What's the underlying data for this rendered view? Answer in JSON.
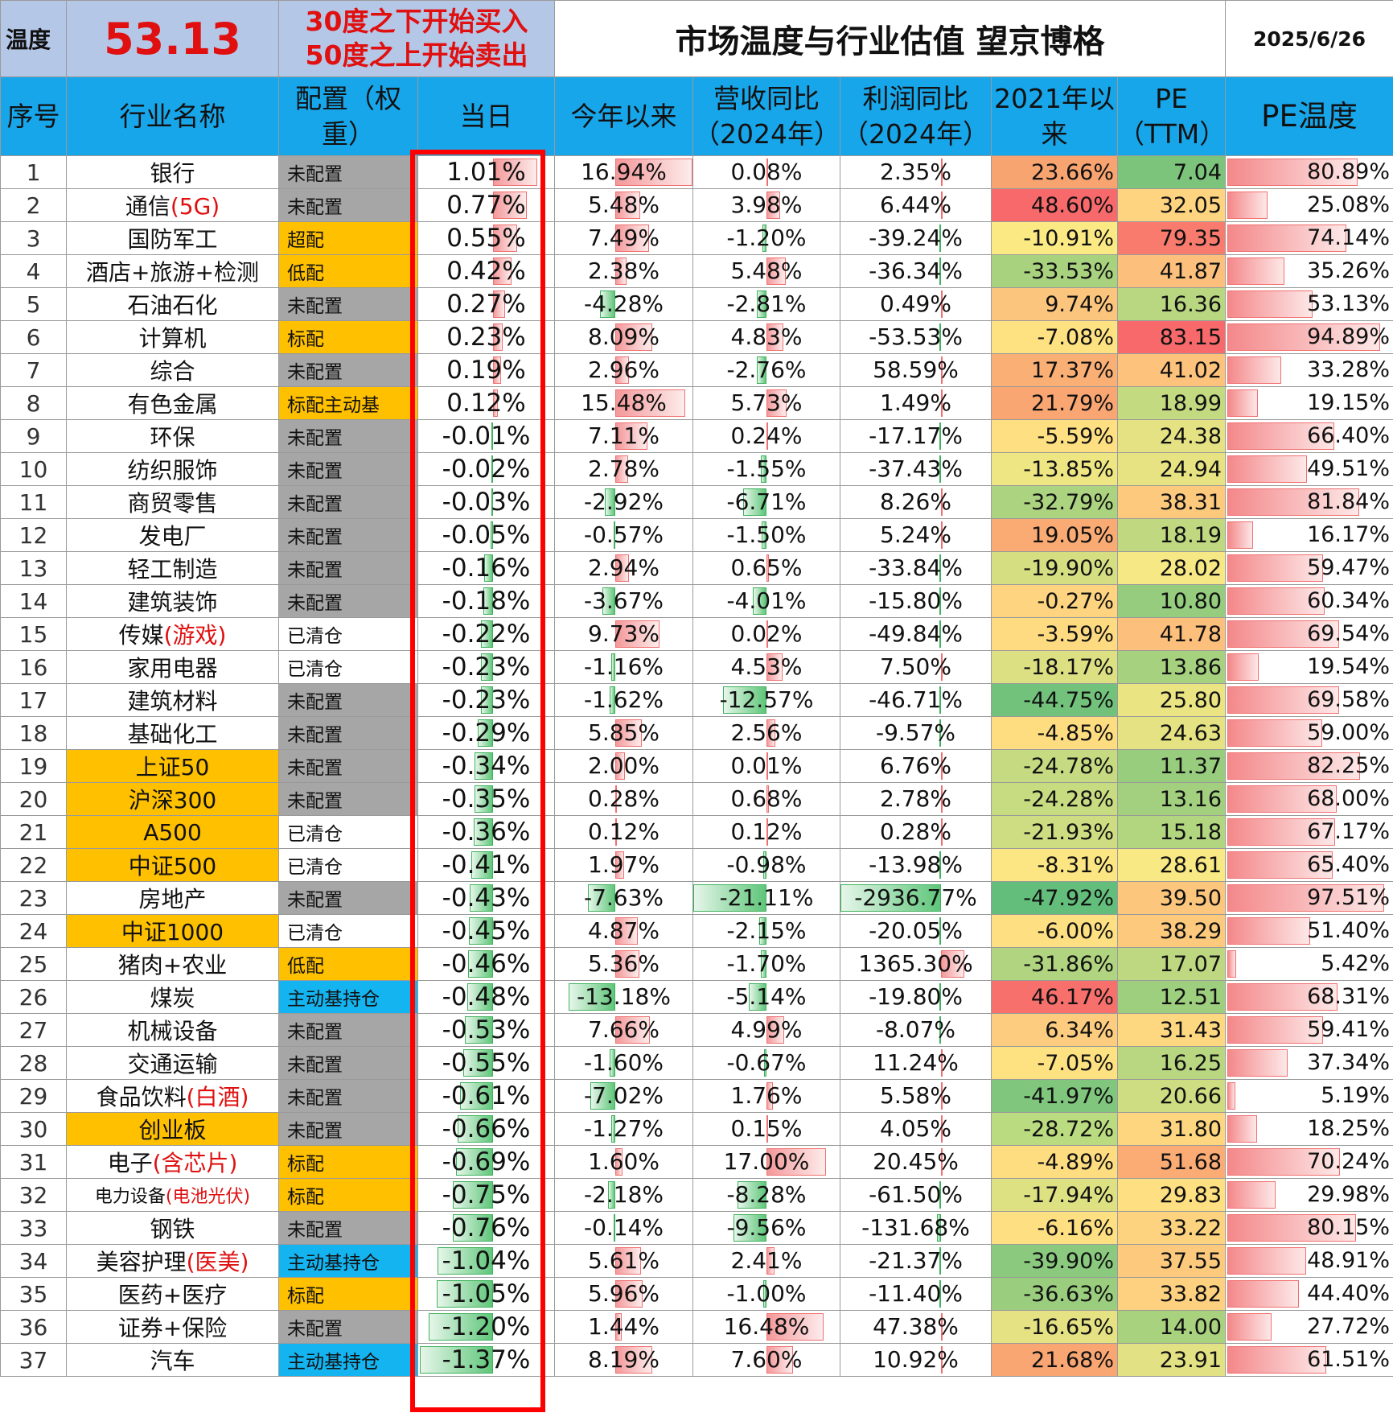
{
  "header": {
    "temp_label": "温度",
    "temp_value": "53.13",
    "rule_buy": "30度之下开始买入",
    "rule_sell": "50度之上开始卖出",
    "title": "市场温度与行业估值 望京博格",
    "date": "2025/6/26"
  },
  "columns": {
    "idx": "序号",
    "name": "行业名称",
    "alloc": "配置（权重）",
    "day": "当日",
    "ytd": "今年以来",
    "rev": "营收同比（2024年）",
    "profit": "利润同比（2024年）",
    "since2021": "2021年以来",
    "pe": "PE（TTM）",
    "pe_temp": "PE温度"
  },
  "colors": {
    "header_blue": "#18a6ea",
    "gold": "#ffc000",
    "gray": "#a6a6a6",
    "blue_cell": "#14b4f0",
    "red_text": "#e01010"
  },
  "rows": [
    {
      "idx": "1",
      "name": "银行",
      "name_red": "",
      "name_gold": false,
      "alloc": "未配置",
      "alloc_style": "gray",
      "day": "1.01%",
      "day_v": 1.01,
      "ytd": "16.94%",
      "ytd_v": 16.94,
      "rev": "0.08%",
      "rev_v": 0.08,
      "profit": "2.35%",
      "profit_v": 2.35,
      "since2021": "23.66%",
      "s21_color": "#f8a471",
      "pe": "7.04",
      "pe_color": "#7cc37c",
      "pe_temp": "80.89%",
      "pe_temp_v": 80.89
    },
    {
      "idx": "2",
      "name": "通信",
      "name_red": "(5G)",
      "name_gold": false,
      "alloc": "未配置",
      "alloc_style": "gray",
      "day": "0.77%",
      "day_v": 0.77,
      "ytd": "5.48%",
      "ytd_v": 5.48,
      "rev": "3.98%",
      "rev_v": 3.98,
      "profit": "6.44%",
      "profit_v": 6.44,
      "since2021": "48.60%",
      "s21_color": "#f8696b",
      "pe": "32.05",
      "pe_color": "#fed480",
      "pe_temp": "25.08%",
      "pe_temp_v": 25.08
    },
    {
      "idx": "3",
      "name": "国防军工",
      "name_red": "",
      "name_gold": false,
      "alloc": "超配",
      "alloc_style": "gold",
      "day": "0.55%",
      "day_v": 0.55,
      "ytd": "7.49%",
      "ytd_v": 7.49,
      "rev": "-1.20%",
      "rev_v": -1.2,
      "profit": "-39.24%",
      "profit_v": -39.24,
      "since2021": "-10.91%",
      "s21_color": "#fbe983",
      "pe": "79.35",
      "pe_color": "#f97b6e",
      "pe_temp": "74.14%",
      "pe_temp_v": 74.14
    },
    {
      "idx": "4",
      "name": "酒店+旅游+检测",
      "name_red": "",
      "name_gold": false,
      "alloc": "低配",
      "alloc_style": "gold",
      "day": "0.42%",
      "day_v": 0.42,
      "ytd": "2.38%",
      "ytd_v": 2.38,
      "rev": "5.48%",
      "rev_v": 5.48,
      "profit": "-36.34%",
      "profit_v": -36.34,
      "since2021": "-33.53%",
      "s21_color": "#a9d27f",
      "pe": "41.87",
      "pe_color": "#fdc07c",
      "pe_temp": "35.26%",
      "pe_temp_v": 35.26
    },
    {
      "idx": "5",
      "name": "石油石化",
      "name_red": "",
      "name_gold": false,
      "alloc": "未配置",
      "alloc_style": "gray",
      "day": "0.27%",
      "day_v": 0.27,
      "ytd": "-4.28%",
      "ytd_v": -4.28,
      "rev": "-2.81%",
      "rev_v": -2.81,
      "profit": "0.49%",
      "profit_v": 0.49,
      "since2021": "9.74%",
      "s21_color": "#fcc57d",
      "pe": "16.36",
      "pe_color": "#b9d780",
      "pe_temp": "53.13%",
      "pe_temp_v": 53.13
    },
    {
      "idx": "6",
      "name": "计算机",
      "name_red": "",
      "name_gold": false,
      "alloc": "标配",
      "alloc_style": "gold",
      "day": "0.23%",
      "day_v": 0.23,
      "ytd": "8.09%",
      "ytd_v": 8.09,
      "rev": "4.83%",
      "rev_v": 4.83,
      "profit": "-53.53%",
      "profit_v": -53.53,
      "since2021": "-7.08%",
      "s21_color": "#fee282",
      "pe": "83.15",
      "pe_color": "#f8696b",
      "pe_temp": "94.89%",
      "pe_temp_v": 94.89
    },
    {
      "idx": "7",
      "name": "综合",
      "name_red": "",
      "name_gold": false,
      "alloc": "未配置",
      "alloc_style": "gray",
      "day": "0.19%",
      "day_v": 0.19,
      "ytd": "2.96%",
      "ytd_v": 2.96,
      "rev": "-2.76%",
      "rev_v": -2.76,
      "profit": "58.59%",
      "profit_v": 58.59,
      "since2021": "17.37%",
      "s21_color": "#faaf75",
      "pe": "41.02",
      "pe_color": "#fdc37c",
      "pe_temp": "33.28%",
      "pe_temp_v": 33.28
    },
    {
      "idx": "8",
      "name": "有色金属",
      "name_red": "",
      "name_gold": false,
      "alloc": "标配主动基",
      "alloc_style": "gold",
      "day": "0.12%",
      "day_v": 0.12,
      "ytd": "15.48%",
      "ytd_v": 15.48,
      "rev": "5.73%",
      "rev_v": 5.73,
      "profit": "1.49%",
      "profit_v": 1.49,
      "since2021": "21.79%",
      "s21_color": "#f9a672",
      "pe": "18.99",
      "pe_color": "#c4da81",
      "pe_temp": "19.15%",
      "pe_temp_v": 19.15
    },
    {
      "idx": "9",
      "name": "环保",
      "name_red": "",
      "name_gold": false,
      "alloc": "未配置",
      "alloc_style": "gray",
      "day": "-0.01%",
      "day_v": -0.01,
      "ytd": "7.11%",
      "ytd_v": 7.11,
      "rev": "0.24%",
      "rev_v": 0.24,
      "profit": "-17.17%",
      "profit_v": -17.17,
      "since2021": "-5.59%",
      "s21_color": "#fedf81",
      "pe": "24.38",
      "pe_color": "#e4e283",
      "pe_temp": "66.40%",
      "pe_temp_v": 66.4
    },
    {
      "idx": "10",
      "name": "纺织服饰",
      "name_red": "",
      "name_gold": false,
      "alloc": "未配置",
      "alloc_style": "gray",
      "day": "-0.02%",
      "day_v": -0.02,
      "ytd": "2.78%",
      "ytd_v": 2.78,
      "rev": "-1.55%",
      "rev_v": -1.55,
      "profit": "-37.43%",
      "profit_v": -37.43,
      "since2021": "-13.85%",
      "s21_color": "#eee683",
      "pe": "24.94",
      "pe_color": "#e7e383",
      "pe_temp": "49.51%",
      "pe_temp_v": 49.51
    },
    {
      "idx": "11",
      "name": "商贸零售",
      "name_red": "",
      "name_gold": false,
      "alloc": "未配置",
      "alloc_style": "gray",
      "day": "-0.03%",
      "day_v": -0.03,
      "ytd": "-2.92%",
      "ytd_v": -2.92,
      "rev": "-6.71%",
      "rev_v": -6.71,
      "profit": "8.26%",
      "profit_v": 8.26,
      "since2021": "-32.79%",
      "s21_color": "#acd37f",
      "pe": "38.31",
      "pe_color": "#fdc97d",
      "pe_temp": "81.84%",
      "pe_temp_v": 81.84
    },
    {
      "idx": "12",
      "name": "发电厂",
      "name_red": "",
      "name_gold": false,
      "alloc": "未配置",
      "alloc_style": "gray",
      "day": "-0.05%",
      "day_v": -0.05,
      "ytd": "-0.57%",
      "ytd_v": -0.57,
      "rev": "-1.50%",
      "rev_v": -1.5,
      "profit": "5.24%",
      "profit_v": 5.24,
      "since2021": "19.05%",
      "s21_color": "#faab74",
      "pe": "18.19",
      "pe_color": "#c0d981",
      "pe_temp": "16.17%",
      "pe_temp_v": 16.17
    },
    {
      "idx": "13",
      "name": "轻工制造",
      "name_red": "",
      "name_gold": false,
      "alloc": "未配置",
      "alloc_style": "gray",
      "day": "-0.16%",
      "day_v": -0.16,
      "ytd": "2.94%",
      "ytd_v": 2.94,
      "rev": "0.65%",
      "rev_v": 0.65,
      "profit": "-33.84%",
      "profit_v": -33.84,
      "since2021": "-19.90%",
      "s21_color": "#d5df82",
      "pe": "28.02",
      "pe_color": "#f6e884",
      "pe_temp": "59.47%",
      "pe_temp_v": 59.47
    },
    {
      "idx": "14",
      "name": "建筑装饰",
      "name_red": "",
      "name_gold": false,
      "alloc": "未配置",
      "alloc_style": "gray",
      "day": "-0.18%",
      "day_v": -0.18,
      "ytd": "-3.67%",
      "ytd_v": -3.67,
      "rev": "-4.01%",
      "rev_v": -4.01,
      "profit": "-15.80%",
      "profit_v": -15.8,
      "since2021": "-0.27%",
      "s21_color": "#fed480",
      "pe": "10.80",
      "pe_color": "#95cc7e",
      "pe_temp": "60.34%",
      "pe_temp_v": 60.34
    },
    {
      "idx": "15",
      "name": "传媒",
      "name_red": "(游戏)",
      "name_gold": false,
      "alloc": "已清仓",
      "alloc_style": "white",
      "day": "-0.22%",
      "day_v": -0.22,
      "ytd": "9.73%",
      "ytd_v": 9.73,
      "rev": "0.02%",
      "rev_v": 0.02,
      "profit": "-49.84%",
      "profit_v": -49.84,
      "since2021": "-3.59%",
      "s21_color": "#feda81",
      "pe": "41.78",
      "pe_color": "#fdc07c",
      "pe_temp": "69.54%",
      "pe_temp_v": 69.54
    },
    {
      "idx": "16",
      "name": "家用电器",
      "name_red": "",
      "name_gold": false,
      "alloc": "已清仓",
      "alloc_style": "white",
      "day": "-0.23%",
      "day_v": -0.23,
      "ytd": "-1.16%",
      "ytd_v": -1.16,
      "rev": "4.53%",
      "rev_v": 4.53,
      "profit": "7.50%",
      "profit_v": 7.5,
      "since2021": "-18.17%",
      "s21_color": "#dde082",
      "pe": "13.86",
      "pe_color": "#a6d27f",
      "pe_temp": "19.54%",
      "pe_temp_v": 19.54
    },
    {
      "idx": "17",
      "name": "建筑材料",
      "name_red": "",
      "name_gold": false,
      "alloc": "未配置",
      "alloc_style": "gray",
      "day": "-0.23%",
      "day_v": -0.23,
      "ytd": "-1.62%",
      "ytd_v": -1.62,
      "rev": "-12.57%",
      "rev_v": -12.57,
      "profit": "-46.71%",
      "profit_v": -46.71,
      "since2021": "-44.75%",
      "s21_color": "#72c27c",
      "pe": "25.80",
      "pe_color": "#ebe483",
      "pe_temp": "69.58%",
      "pe_temp_v": 69.58
    },
    {
      "idx": "18",
      "name": "基础化工",
      "name_red": "",
      "name_gold": false,
      "alloc": "未配置",
      "alloc_style": "gray",
      "day": "-0.29%",
      "day_v": -0.29,
      "ytd": "5.85%",
      "ytd_v": 5.85,
      "rev": "2.56%",
      "rev_v": 2.56,
      "profit": "-9.57%",
      "profit_v": -9.57,
      "since2021": "-4.85%",
      "s21_color": "#fedd81",
      "pe": "24.63",
      "pe_color": "#e5e283",
      "pe_temp": "59.00%",
      "pe_temp_v": 59.0
    },
    {
      "idx": "19",
      "name": "上证50",
      "name_red": "",
      "name_gold": true,
      "alloc": "未配置",
      "alloc_style": "gray",
      "day": "-0.34%",
      "day_v": -0.34,
      "ytd": "2.00%",
      "ytd_v": 2.0,
      "rev": "0.01%",
      "rev_v": 0.01,
      "profit": "6.76%",
      "profit_v": 6.76,
      "since2021": "-24.78%",
      "s21_color": "#c5da81",
      "pe": "11.37",
      "pe_color": "#98cd7e",
      "pe_temp": "82.25%",
      "pe_temp_v": 82.25
    },
    {
      "idx": "20",
      "name": "沪深300",
      "name_red": "",
      "name_gold": true,
      "alloc": "未配置",
      "alloc_style": "gray",
      "day": "-0.35%",
      "day_v": -0.35,
      "ytd": "0.28%",
      "ytd_v": 0.28,
      "rev": "0.68%",
      "rev_v": 0.68,
      "profit": "2.78%",
      "profit_v": 2.78,
      "since2021": "-24.28%",
      "s21_color": "#c7db81",
      "pe": "13.16",
      "pe_color": "#a2d07f",
      "pe_temp": "68.00%",
      "pe_temp_v": 68.0
    },
    {
      "idx": "21",
      "name": "A500",
      "name_red": "",
      "name_gold": true,
      "alloc": "已清仓",
      "alloc_style": "white",
      "day": "-0.36%",
      "day_v": -0.36,
      "ytd": "0.12%",
      "ytd_v": 0.12,
      "rev": "0.12%",
      "rev_v": 0.12,
      "profit": "0.28%",
      "profit_v": 0.28,
      "since2021": "-21.93%",
      "s21_color": "#cfdd82",
      "pe": "15.18",
      "pe_color": "#b2d580",
      "pe_temp": "67.17%",
      "pe_temp_v": 67.17
    },
    {
      "idx": "22",
      "name": "中证500",
      "name_red": "",
      "name_gold": true,
      "alloc": "已清仓",
      "alloc_style": "white",
      "day": "-0.41%",
      "day_v": -0.41,
      "ytd": "1.97%",
      "ytd_v": 1.97,
      "rev": "-0.98%",
      "rev_v": -0.98,
      "profit": "-13.98%",
      "profit_v": -13.98,
      "since2021": "-8.31%",
      "s21_color": "#fce683",
      "pe": "28.61",
      "pe_color": "#f8e984",
      "pe_temp": "65.40%",
      "pe_temp_v": 65.4
    },
    {
      "idx": "23",
      "name": "房地产",
      "name_red": "",
      "name_gold": false,
      "alloc": "未配置",
      "alloc_style": "gray",
      "day": "-0.43%",
      "day_v": -0.43,
      "ytd": "-7.63%",
      "ytd_v": -7.63,
      "rev": "-21.11%",
      "rev_v": -21.11,
      "profit": "-2936.77%",
      "profit_v": -2936.77,
      "since2021": "-47.92%",
      "s21_color": "#63be7b",
      "pe": "39.50",
      "pe_color": "#fdc67d",
      "pe_temp": "97.51%",
      "pe_temp_v": 97.51
    },
    {
      "idx": "24",
      "name": "中证1000",
      "name_red": "",
      "name_gold": true,
      "alloc": "已清仓",
      "alloc_style": "white",
      "day": "-0.45%",
      "day_v": -0.45,
      "ytd": "4.87%",
      "ytd_v": 4.87,
      "rev": "-2.15%",
      "rev_v": -2.15,
      "profit": "-20.05%",
      "profit_v": -20.05,
      "since2021": "-6.00%",
      "s21_color": "#fee082",
      "pe": "38.29",
      "pe_color": "#fdc97d",
      "pe_temp": "51.40%",
      "pe_temp_v": 51.4
    },
    {
      "idx": "25",
      "name": "猪肉+农业",
      "name_red": "",
      "name_gold": false,
      "alloc": "低配",
      "alloc_style": "gold",
      "day": "-0.46%",
      "day_v": -0.46,
      "ytd": "5.36%",
      "ytd_v": 5.36,
      "rev": "-1.70%",
      "rev_v": -1.7,
      "profit": "1365.30%",
      "profit_v": 1365.3,
      "since2021": "-31.86%",
      "s21_color": "#b0d47f",
      "pe": "17.07",
      "pe_color": "#bdd880",
      "pe_temp": "5.42%",
      "pe_temp_v": 5.42
    },
    {
      "idx": "26",
      "name": "煤炭",
      "name_red": "",
      "name_gold": false,
      "alloc": "主动基持仓",
      "alloc_style": "blue",
      "day": "-0.48%",
      "day_v": -0.48,
      "ytd": "-13.18%",
      "ytd_v": -13.18,
      "rev": "-5.14%",
      "rev_v": -5.14,
      "profit": "-19.80%",
      "profit_v": -19.8,
      "since2021": "46.17%",
      "s21_color": "#f8706c",
      "pe": "12.51",
      "pe_color": "#9ecf7e",
      "pe_temp": "68.31%",
      "pe_temp_v": 68.31
    },
    {
      "idx": "27",
      "name": "机械设备",
      "name_red": "",
      "name_gold": false,
      "alloc": "未配置",
      "alloc_style": "gray",
      "day": "-0.53%",
      "day_v": -0.53,
      "ytd": "7.66%",
      "ytd_v": 7.66,
      "rev": "4.99%",
      "rev_v": 4.99,
      "profit": "-8.07%",
      "profit_v": -8.07,
      "since2021": "6.34%",
      "s21_color": "#fdcc7e",
      "pe": "31.43",
      "pe_color": "#fed880",
      "pe_temp": "59.41%",
      "pe_temp_v": 59.41
    },
    {
      "idx": "28",
      "name": "交通运输",
      "name_red": "",
      "name_gold": false,
      "alloc": "未配置",
      "alloc_style": "gray",
      "day": "-0.55%",
      "day_v": -0.55,
      "ytd": "-1.60%",
      "ytd_v": -1.6,
      "rev": "-0.67%",
      "rev_v": -0.67,
      "profit": "11.24%",
      "profit_v": 11.24,
      "since2021": "-7.05%",
      "s21_color": "#fee282",
      "pe": "16.25",
      "pe_color": "#b8d780",
      "pe_temp": "37.34%",
      "pe_temp_v": 37.34
    },
    {
      "idx": "29",
      "name": "食品饮料",
      "name_red": "(白酒)",
      "name_gold": false,
      "alloc": "未配置",
      "alloc_style": "gray",
      "day": "-0.61%",
      "day_v": -0.61,
      "ytd": "-7.02%",
      "ytd_v": -7.02,
      "rev": "1.76%",
      "rev_v": 1.76,
      "profit": "5.58%",
      "profit_v": 5.58,
      "since2021": "-41.97%",
      "s21_color": "#80c67d",
      "pe": "20.66",
      "pe_color": "#cedd82",
      "pe_temp": "5.19%",
      "pe_temp_v": 5.19
    },
    {
      "idx": "30",
      "name": "创业板",
      "name_red": "",
      "name_gold": true,
      "alloc": "未配置",
      "alloc_style": "gray",
      "day": "-0.66%",
      "day_v": -0.66,
      "ytd": "-1.27%",
      "ytd_v": -1.27,
      "rev": "0.15%",
      "rev_v": 0.15,
      "profit": "4.05%",
      "profit_v": 4.05,
      "since2021": "-28.72%",
      "s21_color": "#badb80",
      "pe": "31.80",
      "pe_color": "#fed680",
      "pe_temp": "18.25%",
      "pe_temp_v": 18.25
    },
    {
      "idx": "31",
      "name": "电子",
      "name_red": "(含芯片)",
      "name_gold": false,
      "alloc": "标配",
      "alloc_style": "gold",
      "day": "-0.69%",
      "day_v": -0.69,
      "ytd": "1.60%",
      "ytd_v": 1.6,
      "rev": "17.00%",
      "rev_v": 17.0,
      "profit": "20.45%",
      "profit_v": 20.45,
      "since2021": "-4.89%",
      "s21_color": "#fedd81",
      "pe": "51.68",
      "pe_color": "#fbab74",
      "pe_temp": "70.24%",
      "pe_temp_v": 70.24
    },
    {
      "idx": "32",
      "name": "电力设备",
      "name_red": "(电池光伏)",
      "name_gold": false,
      "small": true,
      "alloc": "标配",
      "alloc_style": "gold",
      "day": "-0.75%",
      "day_v": -0.75,
      "ytd": "-2.18%",
      "ytd_v": -2.18,
      "rev": "-8.28%",
      "rev_v": -8.28,
      "profit": "-61.50%",
      "profit_v": -61.5,
      "since2021": "-17.94%",
      "s21_color": "#dee182",
      "pe": "29.83",
      "pe_color": "#fedf81",
      "pe_temp": "29.98%",
      "pe_temp_v": 29.98
    },
    {
      "idx": "33",
      "name": "钢铁",
      "name_red": "",
      "name_gold": false,
      "alloc": "未配置",
      "alloc_style": "gray",
      "day": "-0.76%",
      "day_v": -0.76,
      "ytd": "-0.14%",
      "ytd_v": -0.14,
      "rev": "-9.56%",
      "rev_v": -9.56,
      "profit": "-131.68%",
      "profit_v": -131.68,
      "since2021": "-6.16%",
      "s21_color": "#fee082",
      "pe": "33.22",
      "pe_color": "#fed37f",
      "pe_temp": "80.15%",
      "pe_temp_v": 80.15
    },
    {
      "idx": "34",
      "name": "美容护理",
      "name_red": "(医美)",
      "name_gold": false,
      "alloc": "主动基持仓",
      "alloc_style": "blue",
      "day": "-1.04%",
      "day_v": -1.04,
      "ytd": "5.61%",
      "ytd_v": 5.61,
      "rev": "2.41%",
      "rev_v": 2.41,
      "profit": "-21.37%",
      "profit_v": -21.37,
      "since2021": "-39.90%",
      "s21_color": "#8ac97e",
      "pe": "37.55",
      "pe_color": "#fdca7d",
      "pe_temp": "48.91%",
      "pe_temp_v": 48.91
    },
    {
      "idx": "35",
      "name": "医药+医疗",
      "name_red": "",
      "name_gold": false,
      "alloc": "标配",
      "alloc_style": "gold",
      "day": "-1.05%",
      "day_v": -1.05,
      "ytd": "5.96%",
      "ytd_v": 5.96,
      "rev": "-1.00%",
      "rev_v": -1.0,
      "profit": "-11.40%",
      "profit_v": -11.4,
      "since2021": "-36.63%",
      "s21_color": "#9acd7e",
      "pe": "33.82",
      "pe_color": "#fdd17f",
      "pe_temp": "44.40%",
      "pe_temp_v": 44.4
    },
    {
      "idx": "36",
      "name": "证券+保险",
      "name_red": "",
      "name_gold": false,
      "alloc": "未配置",
      "alloc_style": "gray",
      "day": "-1.20%",
      "day_v": -1.2,
      "ytd": "1.44%",
      "ytd_v": 1.44,
      "rev": "16.48%",
      "rev_v": 16.48,
      "profit": "47.38%",
      "profit_v": 47.38,
      "since2021": "-16.65%",
      "s21_color": "#e4e283",
      "pe": "14.00",
      "pe_color": "#a9d27f",
      "pe_temp": "27.72%",
      "pe_temp_v": 27.72
    },
    {
      "idx": "37",
      "name": "汽车",
      "name_red": "",
      "name_gold": false,
      "alloc": "主动基持仓",
      "alloc_style": "blue",
      "day": "-1.37%",
      "day_v": -1.37,
      "ytd": "8.19%",
      "ytd_v": 8.19,
      "rev": "7.60%",
      "rev_v": 7.6,
      "profit": "10.92%",
      "profit_v": 10.92,
      "since2021": "21.68%",
      "s21_color": "#f9a672",
      "pe": "23.91",
      "pe_color": "#e2e183",
      "pe_temp": "61.51%",
      "pe_temp_v": 61.51
    }
  ]
}
